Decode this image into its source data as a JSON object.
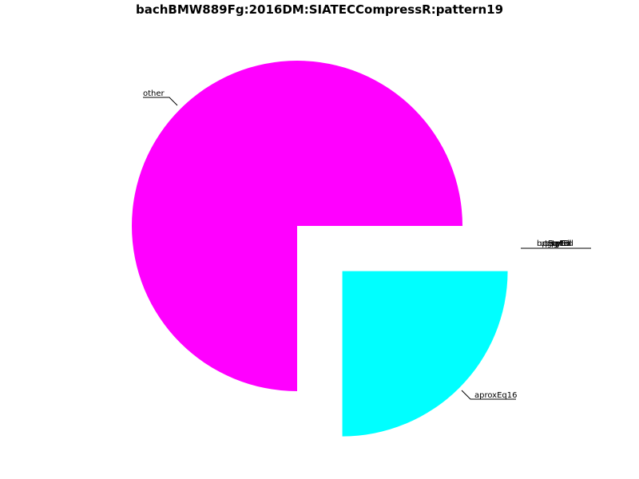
{
  "chart_data": {
    "type": "pie",
    "title": "bachBMW889Fg:2016DM:SIATECCompressR:pattern19",
    "slices": [
      {
        "label": "other",
        "value": 75,
        "color": "#ff00ff",
        "exploded": false
      },
      {
        "label": "aproxEq16",
        "value": 25,
        "color": "#00ffff",
        "exploded": true
      },
      {
        "label": "",
        "value": 0,
        "color": "#ffffff",
        "exploded": false,
        "note": "overlapping labels near 0 degrees, unreadable"
      }
    ],
    "start_angle_deg": 0,
    "direction": "counterclockwise",
    "legend": "none"
  }
}
